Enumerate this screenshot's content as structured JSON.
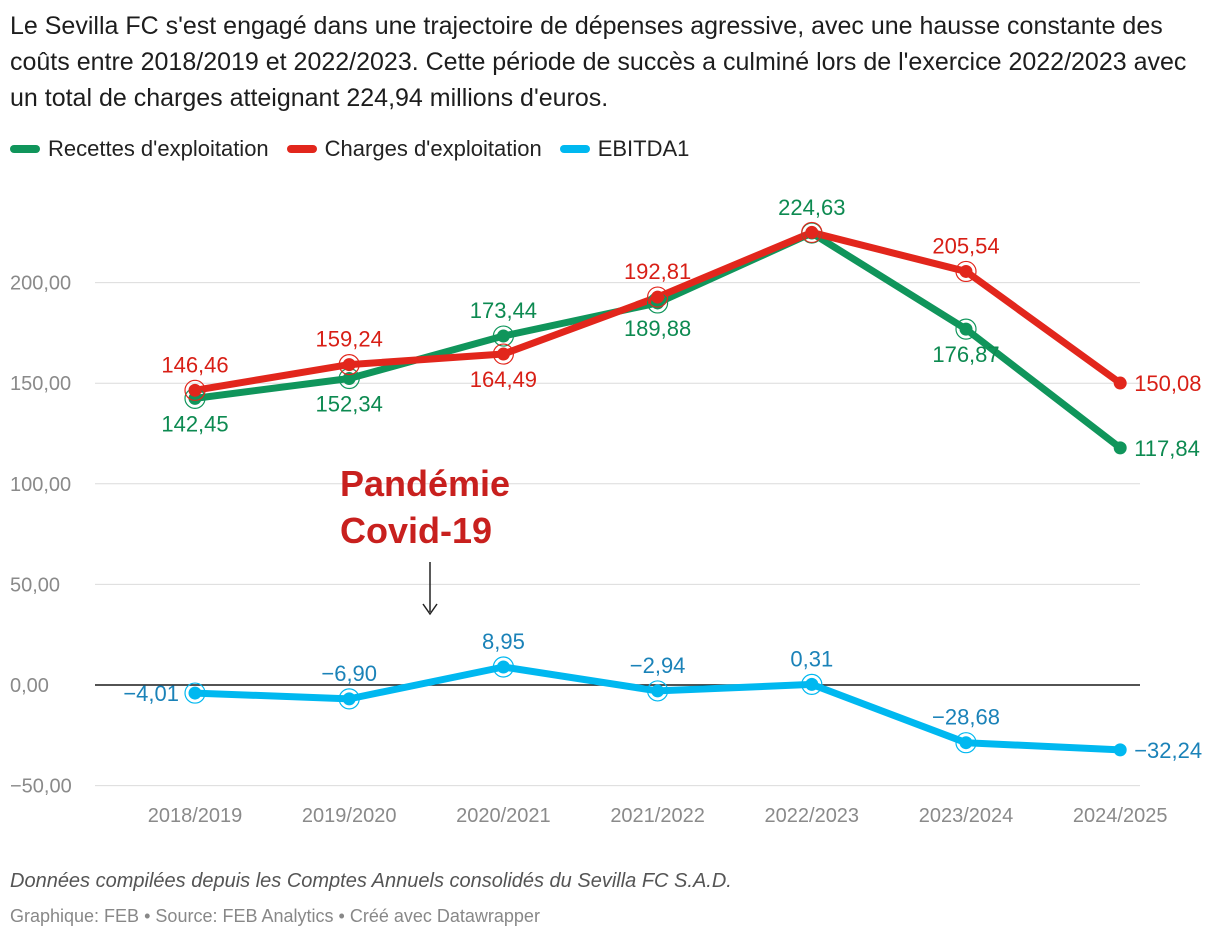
{
  "title": "Le Sevilla FC s'est engagé dans une trajectoire de dépenses agressive, avec une hausse constante des coûts entre 2018/2019 et 2022/2023. Cette période de succès a culminé lors de l'exercice 2022/2023 avec un total de charges atteignant 224,94 millions d'euros.",
  "notes": "Données compilées depuis les Comptes Annuels consolidés du Sevilla FC S.A.D.",
  "credit": {
    "graphique": "Graphique: FEB",
    "separator1": "•",
    "source": "Source: FEB Analytics",
    "separator2": "•",
    "created": "Créé avec Datawrapper"
  },
  "chart_data": {
    "type": "line",
    "categories": [
      "2018/2019",
      "2019/2020",
      "2020/2021",
      "2021/2022",
      "2022/2023",
      "2023/2024",
      "2024/2025"
    ],
    "y_range": [
      -50,
      225
    ],
    "y_ticks": [
      200,
      150,
      100,
      50,
      0,
      -50
    ],
    "y_tick_labels": [
      "200,00",
      "150,00",
      "100,00",
      "50,00",
      "0,00",
      "−50,00"
    ],
    "grid": true,
    "legend_position": "top-left",
    "series": [
      {
        "name": "Recettes d'exploitation",
        "color": "#10955b",
        "label_color": "#0d8a51",
        "values": [
          142.45,
          152.34,
          173.44,
          189.88,
          224.63,
          176.87,
          117.84
        ],
        "labels": [
          "142,45",
          "152,34",
          "173,44",
          "189,88",
          "224,63",
          "176,87",
          "117,84"
        ]
      },
      {
        "name": "Charges d'exploitation",
        "color": "#e2261c",
        "label_color": "#d81f16",
        "values": [
          146.46,
          159.24,
          164.49,
          192.81,
          224.94,
          205.54,
          150.08
        ],
        "labels": [
          "146,46",
          "159,24",
          "164,49",
          "192,81",
          "",
          "205,54",
          "150,08"
        ]
      },
      {
        "name": "EBITDA1",
        "color": "#00b8f0",
        "label_color": "#1a82b8",
        "values": [
          -4.01,
          -6.9,
          8.95,
          -2.94,
          0.31,
          -28.68,
          -32.24
        ],
        "labels": [
          "−4,01",
          "−6,90",
          "8,95",
          "−2,94",
          "0,31",
          "−28,68",
          "−32,24"
        ]
      }
    ],
    "annotation": {
      "text_line1": "Pandémie",
      "text_line2": "Covid-19",
      "color": "#c8201e"
    }
  }
}
